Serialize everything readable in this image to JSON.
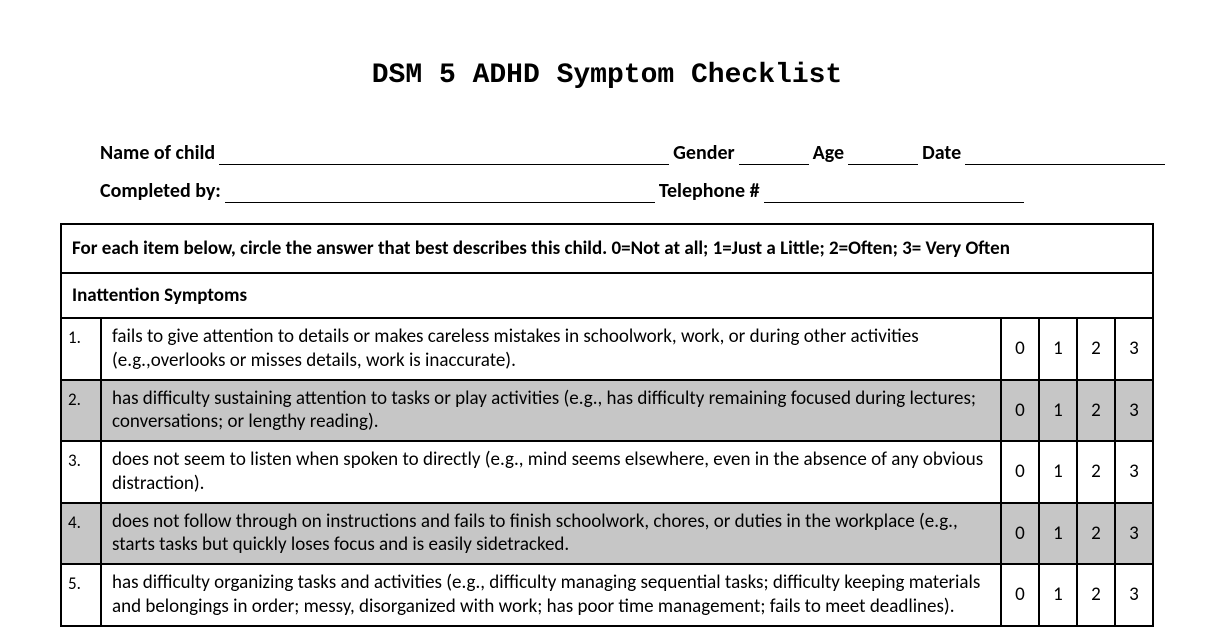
{
  "title": "DSM 5 ADHD Symptom Checklist",
  "header": {
    "name_label": "Name of child",
    "gender_label": "Gender",
    "age_label": "Age",
    "date_label": "Date",
    "completed_by_label": "Completed by:",
    "telephone_label": "Telephone #"
  },
  "instruction": "For each item below, circle the answer that best describes this child.  0=Not at all; 1=Just a Little; 2=Often; 3= Very Often",
  "section_header": "Inattention Symptoms",
  "score_options": [
    "0",
    "1",
    "2",
    "3"
  ],
  "items": [
    {
      "num": "1.",
      "text": "fails to give attention to details or makes careless mistakes in schoolwork, work, or during other activities (e.g.,overlooks or misses details, work is inaccurate).",
      "shaded": false
    },
    {
      "num": "2.",
      "text": "has difficulty sustaining attention to tasks or play activities (e.g., has difficulty remaining focused during lectures; conversations; or lengthy reading).",
      "shaded": true
    },
    {
      "num": "3.",
      "text": "does not seem to listen when spoken to directly (e.g., mind seems elsewhere, even in the absence of any obvious distraction).",
      "shaded": false
    },
    {
      "num": "4.",
      "text": "does not follow through on instructions and fails to finish schoolwork, chores, or duties in the workplace (e.g., starts tasks but quickly loses focus and is easily sidetracked.",
      "shaded": true
    },
    {
      "num": "5.",
      "text": "has difficulty organizing tasks and activities (e.g., difficulty managing sequential tasks; difficulty keeping materials and belongings in order; messy, disorganized with work; has poor time management; fails to meet deadlines).",
      "shaded": false
    }
  ],
  "colors": {
    "background": "#ffffff",
    "text": "#000000",
    "border": "#000000",
    "shaded_row": "#c6c6c6"
  }
}
